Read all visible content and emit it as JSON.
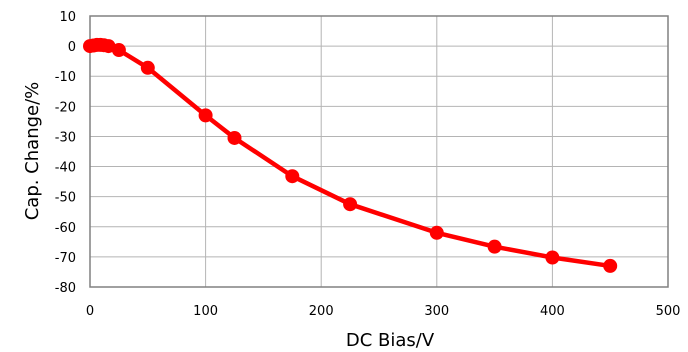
{
  "chart_data": {
    "type": "scatter",
    "xlabel": "DC Bias/V",
    "ylabel": "Cap. Change/%",
    "xlim": [
      0,
      500
    ],
    "ylim": [
      -80,
      10
    ],
    "x_ticks": [
      0,
      100,
      200,
      300,
      400,
      500
    ],
    "y_ticks": [
      10,
      0,
      -10,
      -20,
      -30,
      -40,
      -50,
      -60,
      -70,
      -80
    ],
    "grid": true,
    "legend": "none",
    "series": [
      {
        "color": "#ff0000",
        "line": true,
        "markers": "circle",
        "points": [
          {
            "x": 0,
            "y": 0
          },
          {
            "x": 3,
            "y": 0.2
          },
          {
            "x": 6,
            "y": 0.4
          },
          {
            "x": 9,
            "y": 0.4
          },
          {
            "x": 12,
            "y": 0.3
          },
          {
            "x": 16,
            "y": 0
          },
          {
            "x": 25,
            "y": -1.3
          },
          {
            "x": 50,
            "y": -7.2
          },
          {
            "x": 100,
            "y": -23
          },
          {
            "x": 125,
            "y": -30.5
          },
          {
            "x": 175,
            "y": -43.2
          },
          {
            "x": 225,
            "y": -52.5
          },
          {
            "x": 300,
            "y": -62
          },
          {
            "x": 350,
            "y": -66.6
          },
          {
            "x": 400,
            "y": -70.2
          },
          {
            "x": 450,
            "y": -73
          }
        ]
      }
    ]
  }
}
